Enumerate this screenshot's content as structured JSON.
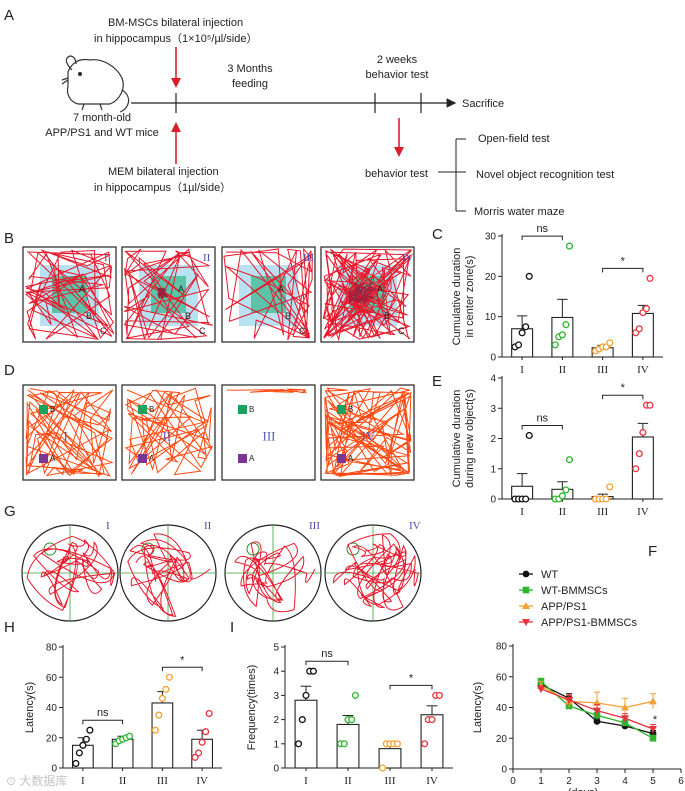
{
  "panel_labels": [
    "A",
    "B",
    "C",
    "D",
    "E",
    "F",
    "G",
    "H",
    "I"
  ],
  "timeline": {
    "bm_line1": "BM-MSCs bilateral injection",
    "bm_line2": "in hippocampus（1×10⁵/µl/side）",
    "mem_line1": "MEM bilateral injection",
    "mem_line2": "in hippocampus（1µl/side）",
    "mice_line1": "7 month-old",
    "mice_line2": "APP/PS1 and WT mice",
    "feeding_line1": "3 Months",
    "feeding_line2": "feeding",
    "behav_line1": "2 weeks",
    "behav_line2": "behavior test",
    "sacrifice": "Sacrifice",
    "behavior_test": "behavior test",
    "tests": [
      "Open-field test",
      "Novel object recognition test",
      "Morris water maze"
    ]
  },
  "group_labels": [
    "I",
    "II",
    "III",
    "IV"
  ],
  "open_field_zone_labels": [
    "A",
    "B",
    "C"
  ],
  "object_labels": [
    "A",
    "B"
  ],
  "colors": {
    "WT": "#111111",
    "WT_BMMSCs": "#2db52d",
    "APP_PS1": "#f5a032",
    "APP_PS1_BMMSCs": "#e8323c",
    "track": "#e8182c",
    "track_orange": "#ff4a12",
    "zone_outer": "#b8e2f2",
    "zone_inner": "#5cc3a8",
    "obj_green": "#1aa35a",
    "obj_purple": "#7b3594"
  },
  "chart_data": [
    {
      "id": "C",
      "type": "bar",
      "ylabel": "Cumulative duration in center zone(s)",
      "ylabel_lines": [
        "Cumulative duration",
        "in center zone(s)"
      ],
      "categories": [
        "I",
        "II",
        "III",
        "IV"
      ],
      "yticks": [
        "0",
        "10",
        "20",
        "30"
      ],
      "ylim": [
        0,
        30
      ],
      "means": [
        7.0,
        9.8,
        2.3,
        10.8
      ],
      "sem": [
        3.2,
        4.5,
        0.6,
        2.0
      ],
      "points": [
        [
          2.5,
          3.0,
          6.0,
          7.5,
          20.0
        ],
        [
          3.0,
          5.0,
          5.5,
          8.0,
          27.5
        ],
        [
          1.5,
          2.0,
          2.5,
          2.5,
          3.5
        ],
        [
          6.0,
          7.0,
          11.0,
          12.0,
          19.5
        ]
      ],
      "significance": [
        {
          "pair": [
            "I",
            "II"
          ],
          "label": "ns"
        },
        {
          "pair": [
            "III",
            "IV"
          ],
          "label": "*"
        }
      ]
    },
    {
      "id": "E",
      "type": "bar",
      "ylabel": "Cumulative duration during new object(s)",
      "ylabel_lines": [
        "Cumulative duration",
        "during new object(s)"
      ],
      "categories": [
        "I",
        "II",
        "III",
        "IV"
      ],
      "yticks": [
        "0",
        "1",
        "2",
        "3",
        "4"
      ],
      "ylim": [
        0,
        4
      ],
      "means": [
        0.42,
        0.32,
        0.08,
        2.05
      ],
      "sem": [
        0.42,
        0.25,
        0.08,
        0.45
      ],
      "points": [
        [
          0.0,
          0.0,
          0.0,
          0.0,
          2.1
        ],
        [
          0.0,
          0.0,
          0.1,
          0.3,
          1.3
        ],
        [
          0.0,
          0.0,
          0.0,
          0.0,
          0.4
        ],
        [
          1.0,
          1.5,
          2.2,
          3.1,
          3.1
        ]
      ],
      "significance": [
        {
          "pair": [
            "I",
            "II"
          ],
          "label": "ns"
        },
        {
          "pair": [
            "III",
            "IV"
          ],
          "label": "*"
        }
      ]
    },
    {
      "id": "H",
      "type": "bar",
      "ylabel": "Latency(s)",
      "categories": [
        "I",
        "II",
        "III",
        "IV"
      ],
      "yticks": [
        "0",
        "20",
        "40",
        "60",
        "80"
      ],
      "ylim": [
        0,
        80
      ],
      "means": [
        15.0,
        19.0,
        43.0,
        19.0
      ],
      "sem": [
        5.0,
        2.0,
        7.5,
        6.0
      ],
      "points": [
        [
          3.0,
          10.0,
          15.0,
          19.0,
          25.0
        ],
        [
          16.0,
          18.0,
          19.0,
          20.0,
          21.0
        ],
        [
          25.0,
          35.0,
          46.0,
          52.0,
          60.0
        ],
        [
          7.0,
          10.0,
          17.0,
          24.0,
          36.0
        ]
      ],
      "significance": [
        {
          "pair": [
            "I",
            "II"
          ],
          "label": "ns"
        },
        {
          "pair": [
            "III",
            "IV"
          ],
          "label": "*"
        }
      ]
    },
    {
      "id": "I",
      "type": "bar",
      "ylabel": "Frequency(times)",
      "categories": [
        "I",
        "II",
        "III",
        "IV"
      ],
      "yticks": [
        "0",
        "1",
        "2",
        "3",
        "4",
        "5"
      ],
      "ylim": [
        0,
        5
      ],
      "means": [
        2.8,
        1.8,
        0.8,
        2.2
      ],
      "sem": [
        0.58,
        0.37,
        0.2,
        0.37
      ],
      "points": [
        [
          1.0,
          2.0,
          3.0,
          4.0,
          4.0
        ],
        [
          1.0,
          1.0,
          2.0,
          2.0,
          3.0
        ],
        [
          0.0,
          1.0,
          1.0,
          1.0,
          1.0
        ],
        [
          1.0,
          2.0,
          2.0,
          3.0,
          3.0
        ]
      ],
      "significance": [
        {
          "pair": [
            "I",
            "II"
          ],
          "label": "ns"
        },
        {
          "pair": [
            "III",
            "IV"
          ],
          "label": "*"
        }
      ]
    },
    {
      "id": "F",
      "type": "line",
      "xlabel": "(days)",
      "ylabel": "Latency(s)",
      "x": [
        1,
        2,
        3,
        4,
        5
      ],
      "xticks": [
        "0",
        "1",
        "2",
        "3",
        "4",
        "5",
        "6"
      ],
      "xlim": [
        0,
        6
      ],
      "yticks": [
        "0",
        "20",
        "40",
        "60",
        "80"
      ],
      "ylim": [
        0,
        80
      ],
      "legend_position": "top-left",
      "series": [
        {
          "name": "WT",
          "color": "#111111",
          "marker": "circle",
          "values": [
            55,
            46,
            31,
            28,
            23
          ],
          "err": [
            2,
            3,
            2,
            2,
            2
          ]
        },
        {
          "name": "WT-BMMSCs",
          "color": "#2db52d",
          "marker": "square",
          "values": [
            57,
            41,
            35,
            30,
            20
          ],
          "err": [
            2,
            2,
            3,
            2,
            2
          ]
        },
        {
          "name": "APP/PS1",
          "color": "#f5a032",
          "marker": "triangle-up",
          "values": [
            54,
            44,
            43,
            40,
            44
          ],
          "err": [
            3,
            4,
            7,
            6,
            5
          ]
        },
        {
          "name": "APP/PS1-BMMSCs",
          "color": "#e8323c",
          "marker": "triangle-down",
          "values": [
            52,
            45,
            38,
            33,
            26
          ],
          "err": [
            2,
            3,
            4,
            3,
            3
          ]
        }
      ],
      "annotation": "*"
    }
  ],
  "watermark": "⊙ 大数据库"
}
